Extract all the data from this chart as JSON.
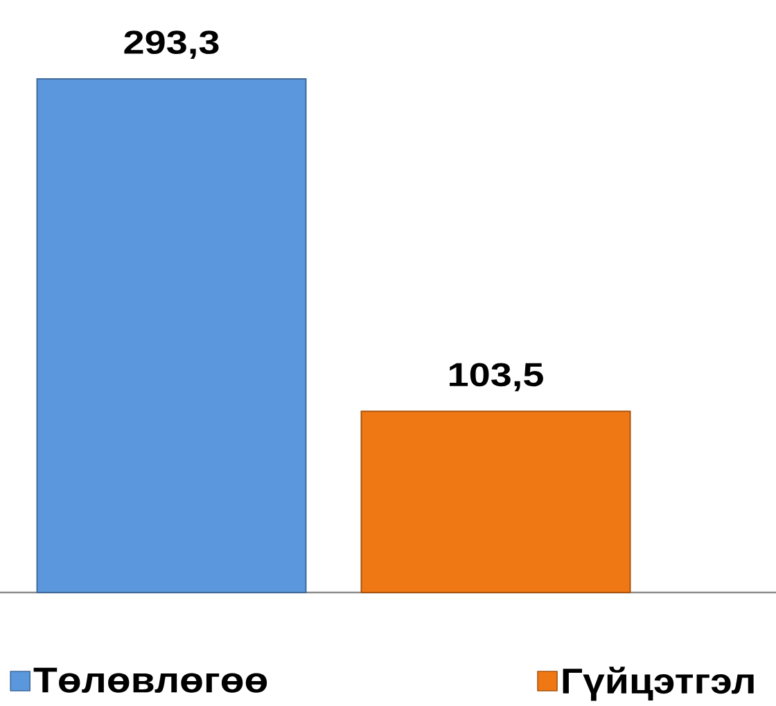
{
  "chart_data": {
    "type": "bar",
    "categories": [
      null
    ],
    "series": [
      {
        "name": "Төлөвлөгөө",
        "color": "#5b97dc",
        "values": [
          293.3
        ],
        "value_labels": [
          "293,3"
        ]
      },
      {
        "name": "Гүйцэтгэл",
        "color": "#f07814",
        "values": [
          103.5
        ],
        "value_labels": [
          "103,5"
        ]
      }
    ],
    "legend": "bottom"
  }
}
